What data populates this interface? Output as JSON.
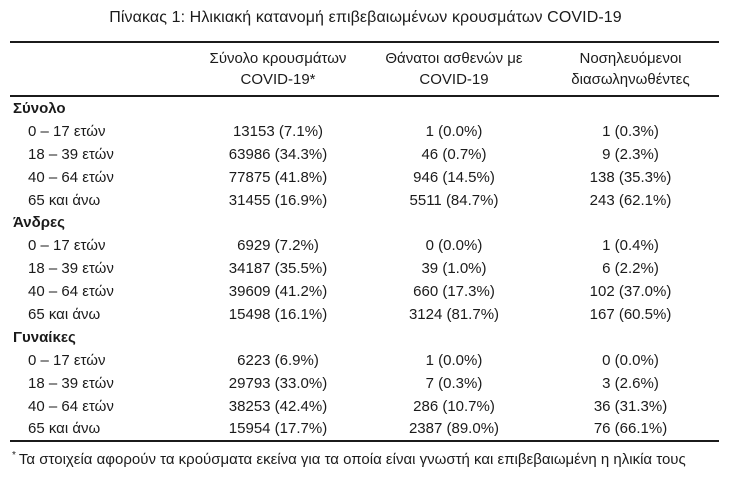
{
  "title": "Πίνακας 1: Ηλικιακή κατανομή επιβεβαιωμένων κρουσμάτων COVID-19",
  "table": {
    "columns": [
      {
        "line1": "Σύνολο κρουσμάτων",
        "line2": "COVID-19*"
      },
      {
        "line1": "Θάνατοι ασθενών με",
        "line2": "COVID-19"
      },
      {
        "line1": "Νοσηλευόμενοι",
        "line2": "διασωληνωθέντες"
      }
    ],
    "sections": [
      {
        "label": "Σύνολο",
        "rows": [
          {
            "age": "0 – 17 ετών",
            "values": [
              "13153 (7.1%)",
              "1 (0.0%)",
              "1 (0.3%)"
            ]
          },
          {
            "age": "18 – 39 ετών",
            "values": [
              "63986 (34.3%)",
              "46 (0.7%)",
              "9 (2.3%)"
            ]
          },
          {
            "age": "40 – 64 ετών",
            "values": [
              "77875 (41.8%)",
              "946 (14.5%)",
              "138 (35.3%)"
            ]
          },
          {
            "age": "65 και άνω",
            "values": [
              "31455 (16.9%)",
              "5511 (84.7%)",
              "243 (62.1%)"
            ]
          }
        ]
      },
      {
        "label": "Άνδρες",
        "rows": [
          {
            "age": "0 – 17 ετών",
            "values": [
              "6929 (7.2%)",
              "0 (0.0%)",
              "1 (0.4%)"
            ]
          },
          {
            "age": "18 – 39 ετών",
            "values": [
              "34187 (35.5%)",
              "39 (1.0%)",
              "6 (2.2%)"
            ]
          },
          {
            "age": "40 – 64 ετών",
            "values": [
              "39609 (41.2%)",
              "660 (17.3%)",
              "102 (37.0%)"
            ]
          },
          {
            "age": "65 και άνω",
            "values": [
              "15498 (16.1%)",
              "3124 (81.7%)",
              "167 (60.5%)"
            ]
          }
        ]
      },
      {
        "label": "Γυναίκες",
        "rows": [
          {
            "age": "0 – 17 ετών",
            "values": [
              "6223 (6.9%)",
              "1 (0.0%)",
              "0 (0.0%)"
            ]
          },
          {
            "age": "18 – 39 ετών",
            "values": [
              "29793 (33.0%)",
              "7 (0.3%)",
              "3 (2.6%)"
            ]
          },
          {
            "age": "40 – 64 ετών",
            "values": [
              "38253 (42.4%)",
              "286 (10.7%)",
              "36 (31.3%)"
            ]
          },
          {
            "age": "65 και άνω",
            "values": [
              "15954 (17.7%)",
              "2387 (89.0%)",
              "76 (66.1%)"
            ]
          }
        ]
      }
    ]
  },
  "footnote": {
    "marker": "*",
    "text": "Τα στοιχεία αφορούν τα κρούσματα εκείνα για τα οποία είναι γνωστή και επιβεβαιωμένη η ηλικία τους"
  },
  "colors": {
    "text": "#1b1b1b",
    "rule": "#1b1b1b",
    "background": "#ffffff"
  }
}
